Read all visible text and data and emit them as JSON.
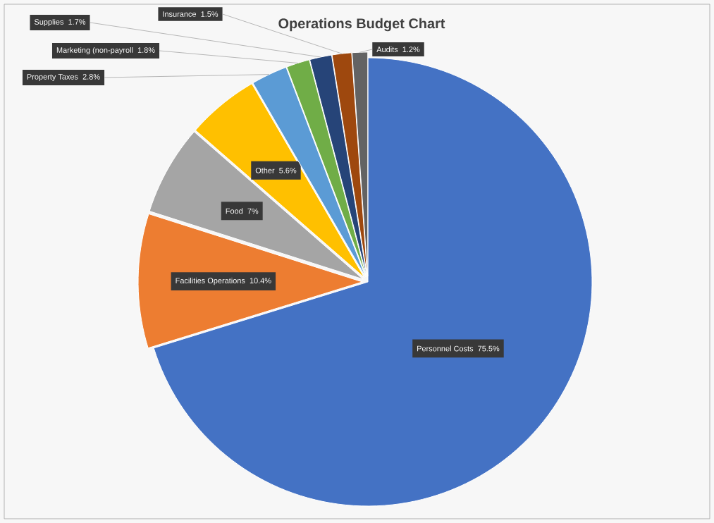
{
  "chart_data": {
    "type": "pie",
    "title": "Operations Budget Chart",
    "categories": [
      "Personnel Costs",
      "Facilities Operations",
      "Food",
      "Other",
      "Property Taxes",
      "Marketing (non-payroll",
      "Supplies",
      "Insurance",
      "Audits"
    ],
    "values": [
      75.5,
      10.4,
      7,
      5.6,
      2.8,
      1.8,
      1.7,
      1.5,
      1.2
    ],
    "value_labels": [
      "75.5%",
      "10.4%",
      "7%",
      "5.6%",
      "2.8%",
      "1.8%",
      "1.7%",
      "1.5%",
      "1.2%"
    ],
    "colors": [
      "#4472c4",
      "#ed7d31",
      "#a5a5a5",
      "#ffc000",
      "#5b9bd5",
      "#70ad47",
      "#264478",
      "#9e480e",
      "#636363"
    ]
  }
}
